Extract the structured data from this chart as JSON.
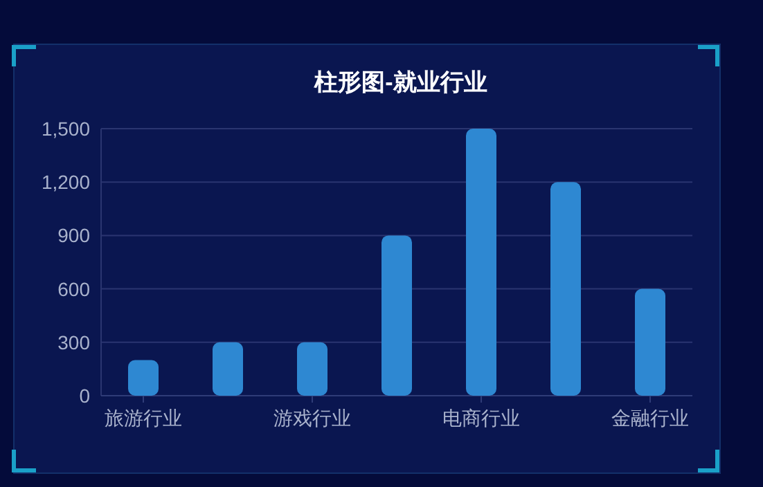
{
  "chart_data": {
    "type": "bar",
    "title": "柱形图-就业行业",
    "categories": [
      "旅游行业",
      null,
      "游戏行业",
      null,
      "电商行业",
      null,
      "金融行业"
    ],
    "values": [
      200,
      300,
      300,
      900,
      1500,
      1200,
      600
    ],
    "color": "#2e88d2",
    "ylim": [
      0,
      1500
    ],
    "yticks": [
      0,
      300,
      600,
      900,
      {
        "value": 1200,
        "label": "1,200"
      },
      {
        "value": 1500,
        "label": "1,500"
      }
    ],
    "grid": "y"
  }
}
